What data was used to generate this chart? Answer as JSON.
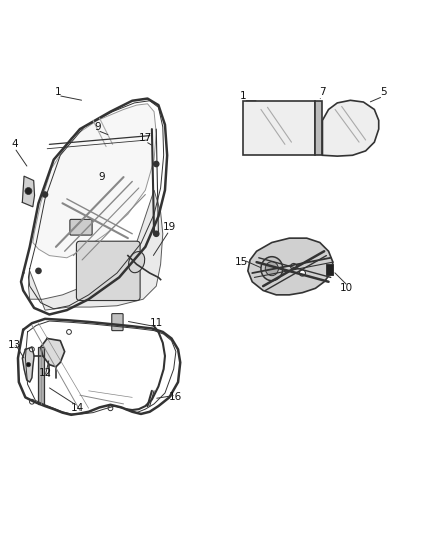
{
  "bg_color": "#ffffff",
  "line_color": "#333333",
  "light_gray": "#aaaaaa",
  "mid_gray": "#888888",
  "dark_gray": "#555555",
  "fill_gray": "#e8e8e8",
  "fill_mid": "#cccccc"
}
